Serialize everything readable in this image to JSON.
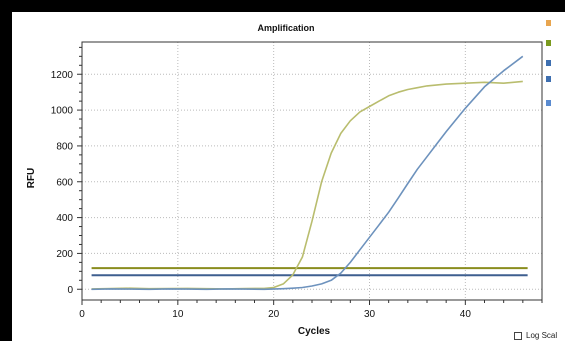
{
  "colors": {
    "background": "#000000",
    "panel": "#ffffff",
    "series_olive": "#b9bd6e",
    "series_blue": "#6d92bd",
    "threshold_green": "#8a8d1e",
    "threshold_blue": "#3e5f8f"
  },
  "legend": {
    "items": [
      {
        "icon": "orange-well-icon",
        "color": "#e8a54f"
      },
      {
        "icon": "green-well-icon",
        "color": "#7a9a1e"
      },
      {
        "icon": "blue-well-icon",
        "color": "#3e6fb0"
      },
      {
        "icon": "blue-well-icon",
        "color": "#3e6fb0"
      },
      {
        "icon": "blue-marker-icon",
        "color": "#5a8bd0"
      }
    ]
  },
  "options": {
    "log_scale_label": "Log Scal",
    "log_scale_checked": false
  },
  "chart_data": {
    "type": "line",
    "title": "Amplification",
    "xlabel": "Cycles",
    "ylabel": "RFU",
    "xlim": [
      0,
      48
    ],
    "ylim": [
      -60,
      1380
    ],
    "xticks": [
      0,
      10,
      20,
      30,
      40
    ],
    "yticks": [
      0,
      200,
      400,
      600,
      800,
      1000,
      1200
    ],
    "grid": true,
    "series": [
      {
        "color": "#b9bd6e",
        "x": [
          1,
          3,
          5,
          7,
          9,
          11,
          13,
          15,
          17,
          19,
          20,
          21,
          22,
          23,
          24,
          25,
          26,
          27,
          28,
          29,
          30,
          31,
          32,
          33,
          34,
          35,
          36,
          38,
          40,
          42,
          44,
          46
        ],
        "y": [
          2,
          4,
          6,
          3,
          4,
          5,
          3,
          2,
          4,
          5,
          10,
          30,
          80,
          180,
          380,
          600,
          760,
          870,
          940,
          990,
          1020,
          1050,
          1080,
          1100,
          1115,
          1125,
          1135,
          1145,
          1150,
          1155,
          1150,
          1160
        ]
      },
      {
        "color": "#6d92bd",
        "x": [
          1,
          3,
          5,
          7,
          9,
          11,
          13,
          15,
          17,
          19,
          21,
          22,
          23,
          24,
          25,
          26,
          27,
          28,
          29,
          30,
          31,
          32,
          33,
          34,
          35,
          36,
          37,
          38,
          40,
          42,
          44,
          46
        ],
        "y": [
          0,
          2,
          1,
          0,
          2,
          1,
          0,
          2,
          1,
          0,
          3,
          6,
          10,
          18,
          30,
          50,
          90,
          150,
          220,
          290,
          360,
          430,
          510,
          590,
          670,
          740,
          810,
          880,
          1010,
          1130,
          1220,
          1300
        ]
      }
    ],
    "thresholds": [
      {
        "color": "#8a8d1e",
        "y": 118
      },
      {
        "color": "#3e5f8f",
        "y": 78
      }
    ]
  }
}
